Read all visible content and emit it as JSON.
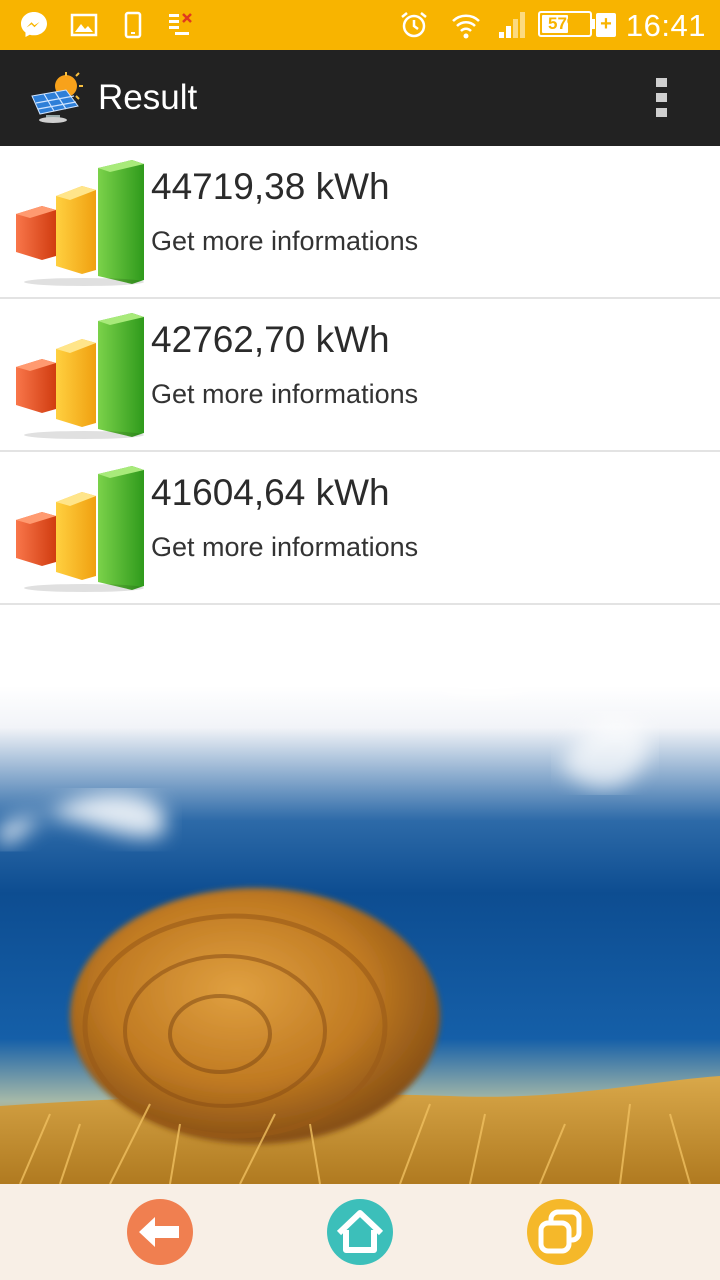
{
  "status_bar": {
    "time": "16:41",
    "battery_percent": "57%",
    "battery_level": 0.57,
    "icons": [
      "messenger-icon",
      "gallery-icon",
      "phone-icon",
      "data-icon",
      "alarm-icon",
      "wifi-icon",
      "signal-icon",
      "battery-icon",
      "charging-icon"
    ]
  },
  "action_bar": {
    "title": "Result",
    "app_icon": "solar-panel-icon",
    "menu_icon": "overflow-menu-icon"
  },
  "results": [
    {
      "value": "44719,38 kWh",
      "link": "Get more informations"
    },
    {
      "value": "42762,70 kWh",
      "link": "Get more informations"
    },
    {
      "value": "41604,64 kWh",
      "link": "Get more informations"
    }
  ],
  "bottom_nav": {
    "items": [
      {
        "name": "back",
        "icon": "back-arrow-icon",
        "color": "#F07F50"
      },
      {
        "name": "home",
        "icon": "home-icon",
        "color": "#3CBFBA"
      },
      {
        "name": "windows",
        "icon": "windows-icon",
        "color": "#F5B82A"
      }
    ]
  },
  "colors": {
    "status_bar": "#F8B400",
    "action_bar": "#222222",
    "nav_background": "#F8EFE6"
  }
}
